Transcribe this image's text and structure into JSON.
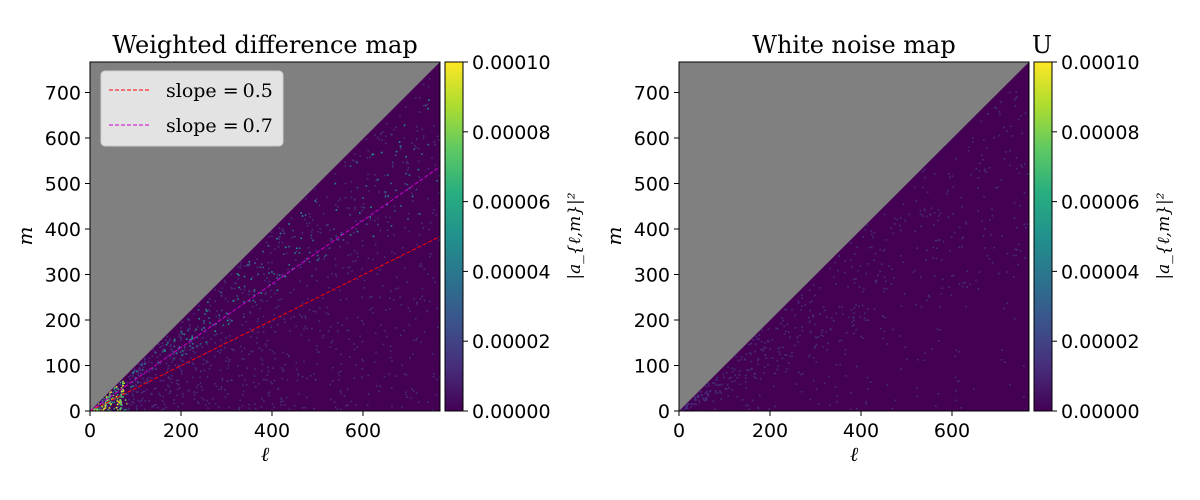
{
  "colors": {
    "masked": "#808080",
    "background_low": "#440154",
    "viridis": [
      "#440154",
      "#472d7b",
      "#3b528b",
      "#2c728e",
      "#21918c",
      "#28ae80",
      "#5ec962",
      "#addc30",
      "#fde725"
    ]
  },
  "chart_data": [
    {
      "type": "heatmap",
      "title": "Weighted difference map",
      "xlabel": "ℓ",
      "ylabel": "m",
      "xlim": [
        0,
        768
      ],
      "ylim": [
        0,
        768
      ],
      "x_ticks": [
        "0",
        "200",
        "400",
        "600"
      ],
      "y_ticks": [
        "0",
        "100",
        "200",
        "300",
        "400",
        "500",
        "600",
        "700"
      ],
      "masked_region": "m > ℓ (upper-left triangle, gray)",
      "colorbar": {
        "label": "|a_{ℓ,m}|²",
        "range": [
          0,
          0.0001
        ],
        "ticks": [
          "0.00000",
          "0.00002",
          "0.00004",
          "0.00006",
          "0.00008",
          "0.00010"
        ],
        "colormap": "viridis"
      },
      "lines": [
        {
          "label": "slope = 0.5",
          "slope": 0.5,
          "color": "#ff0000",
          "style": "dashed"
        },
        {
          "label": "slope = 0.7",
          "slope": 0.7,
          "color": "#cc00cc",
          "style": "dashed"
        }
      ],
      "legend": {
        "placement": "top-left",
        "entries": [
          "slope = 0.5",
          "slope = 0.7"
        ],
        "entry_parts": [
          {
            "word": "slope",
            "eq": "=",
            "value": "0.5"
          },
          {
            "word": "slope",
            "eq": "=",
            "value": "0.7"
          }
        ]
      }
    },
    {
      "type": "heatmap",
      "title": "White noise map",
      "corner_label": "U",
      "xlabel": "ℓ",
      "ylabel": "m",
      "xlim": [
        0,
        768
      ],
      "ylim": [
        0,
        768
      ],
      "x_ticks": [
        "0",
        "200",
        "400",
        "600"
      ],
      "y_ticks": [
        "0",
        "100",
        "200",
        "300",
        "400",
        "500",
        "600",
        "700"
      ],
      "masked_region": "m > ℓ (upper-left triangle, gray)",
      "colorbar": {
        "label": "|a_{ℓ,m}|²",
        "range": [
          0,
          0.0001
        ],
        "ticks": [
          "0.00000",
          "0.00002",
          "0.00004",
          "0.00006",
          "0.00008",
          "0.00010"
        ],
        "colormap": "viridis"
      }
    }
  ]
}
